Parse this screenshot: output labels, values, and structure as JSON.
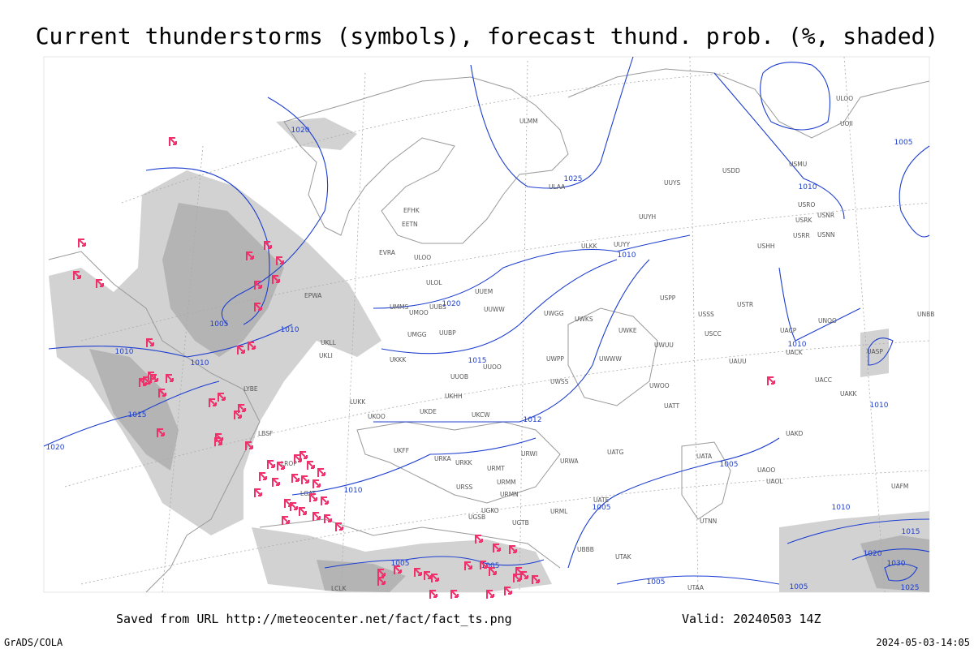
{
  "header": {
    "title": "Current thunderstorms (symbols), forecast thund. prob. (%, shaded)"
  },
  "footer": {
    "source": "Saved from URL http://meteocenter.net/fact/fact_ts.png",
    "valid": "Valid: 20240503 14Z",
    "credit": "GrADS/COLA",
    "timestamp": "2024-05-03-14:05"
  },
  "isobar_labels": [
    "1020",
    "1025",
    "1010",
    "1020",
    "1005",
    "1010",
    "1010",
    "1010",
    "1015",
    "1015",
    "1012",
    "1020",
    "1010",
    "1005",
    "1005",
    "1010",
    "1010",
    "1010",
    "1005",
    "1005",
    "1005",
    "1005",
    "1005",
    "1010",
    "1015",
    "1020",
    "1030",
    "1025"
  ],
  "station_labels": [
    "ULMM",
    "ULOO",
    "UOII",
    "USDD",
    "UUYS",
    "USMU",
    "ULAA",
    "EFHK",
    "EETN",
    "USRO",
    "USRK",
    "USNR",
    "USRR",
    "USNN",
    "UUYH",
    "ULKK",
    "UUYY",
    "USHH",
    "EVRA",
    "ULOO",
    "ULOL",
    "UUEM",
    "EPWA",
    "UMMS",
    "UMOO",
    "UUBS",
    "UUWW",
    "UWGG",
    "UWKS",
    "USPP",
    "USSS",
    "USTR",
    "UNBB",
    "UMGG",
    "UUBP",
    "UWKE",
    "UWUU",
    "USCC",
    "UACP",
    "UNOO",
    "UKLL",
    "UKLI",
    "UKKK",
    "UUOO",
    "UWPP",
    "UWWW",
    "UAUU",
    "UACK",
    "UASP",
    "LYBE",
    "UUOB",
    "UWSS",
    "UWOO",
    "UACC",
    "UAKK",
    "LUKK",
    "UKHH",
    "UKOO",
    "UKDE",
    "UKCW",
    "URKA",
    "UATT",
    "UKFF",
    "URWI",
    "URKK",
    "URMT",
    "URWA",
    "UATG",
    "UATA",
    "UAKD",
    "UAOO",
    "URSS",
    "URMM",
    "URMN",
    "UATE",
    "UAOL",
    "UGKO",
    "UGSB",
    "UGTB",
    "URML",
    "UTNN",
    "UBBB",
    "UTAK",
    "UTAA",
    "UAFM",
    "LBSF",
    "LROP",
    "LGAT",
    "LCLK"
  ]
}
